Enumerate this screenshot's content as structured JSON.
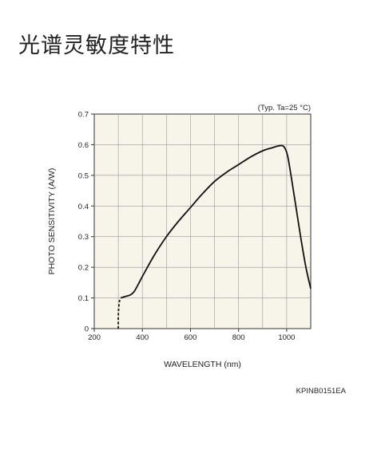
{
  "page": {
    "title": "光谱灵敏度特性",
    "doc_code": "KPINB0151EA"
  },
  "chart_data": {
    "type": "line",
    "note": "(Typ. Ta=25 °C)",
    "xlabel": "WAVELENGTH (nm)",
    "ylabel": "PHOTO SENSITIVITY (A/W)",
    "xlim": [
      200,
      1100
    ],
    "ylim": [
      0,
      0.7
    ],
    "x_ticks": [
      200,
      400,
      600,
      800,
      1000
    ],
    "y_ticks": [
      0,
      0.1,
      0.2,
      0.3,
      0.4,
      0.5,
      0.6,
      0.7
    ],
    "y_tick_labels": [
      "0",
      "0.1",
      "0.2",
      "0.3",
      "0.4",
      "0.5",
      "0.6",
      "0.7"
    ],
    "grid": true,
    "line_color": "#111111",
    "grid_color": "#999999",
    "plot_background": "#f7f4ea",
    "series": [
      {
        "style": "dashed",
        "x": [
          300,
          300,
          302,
          305,
          310
        ],
        "y": [
          0,
          0.04,
          0.07,
          0.09,
          0.1
        ]
      },
      {
        "style": "solid",
        "x": [
          310,
          330,
          350,
          365,
          380,
          400,
          450,
          500,
          550,
          600,
          650,
          700,
          750,
          800,
          850,
          900,
          940,
          960,
          975,
          985,
          995,
          1005,
          1020,
          1040,
          1060,
          1080,
          1100
        ],
        "y": [
          0.1,
          0.105,
          0.11,
          0.12,
          0.14,
          0.17,
          0.24,
          0.3,
          0.35,
          0.395,
          0.44,
          0.48,
          0.51,
          0.535,
          0.56,
          0.58,
          0.59,
          0.595,
          0.597,
          0.596,
          0.585,
          0.56,
          0.49,
          0.39,
          0.29,
          0.2,
          0.13
        ]
      }
    ]
  }
}
